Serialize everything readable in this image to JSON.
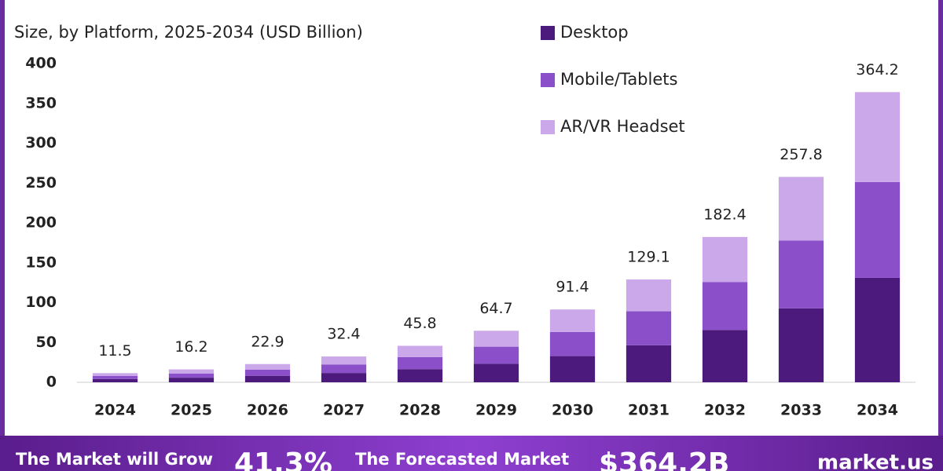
{
  "chart_data": {
    "type": "stacked-bar",
    "subtitle": "Size, by Platform, 2025-2034 (USD Billion)",
    "categories": [
      "2024",
      "2025",
      "2026",
      "2027",
      "2028",
      "2029",
      "2030",
      "2031",
      "2032",
      "2033",
      "2034"
    ],
    "series": [
      {
        "name": "Desktop",
        "color": "#4b1a7c",
        "values": [
          4.1,
          5.8,
          8.2,
          11.7,
          16.5,
          23.3,
          32.9,
          46.5,
          65.7,
          92.8,
          131.1
        ]
      },
      {
        "name": "Mobile/Tablets",
        "color": "#8a4fc9",
        "values": [
          3.8,
          5.3,
          7.6,
          10.7,
          15.1,
          21.4,
          30.2,
          42.6,
          60.2,
          85.1,
          120.2
        ]
      },
      {
        "name": "AR/VR Headset",
        "color": "#cba8ea",
        "values": [
          3.6,
          5.1,
          7.1,
          10.0,
          14.2,
          20.0,
          28.3,
          40.0,
          56.5,
          79.9,
          112.9
        ]
      }
    ],
    "totals": [
      11.5,
      16.2,
      22.9,
      32.4,
      45.8,
      64.7,
      91.4,
      129.1,
      182.4,
      257.8,
      364.2
    ],
    "ylim": [
      0,
      400
    ],
    "yticks": [
      0,
      50,
      100,
      150,
      200,
      250,
      300,
      350,
      400
    ],
    "grid": false
  },
  "footer": {
    "items": [
      "The Market will Grow",
      "41.3%",
      "The Forecasted Market",
      "$364.2B",
      "market.us"
    ]
  }
}
